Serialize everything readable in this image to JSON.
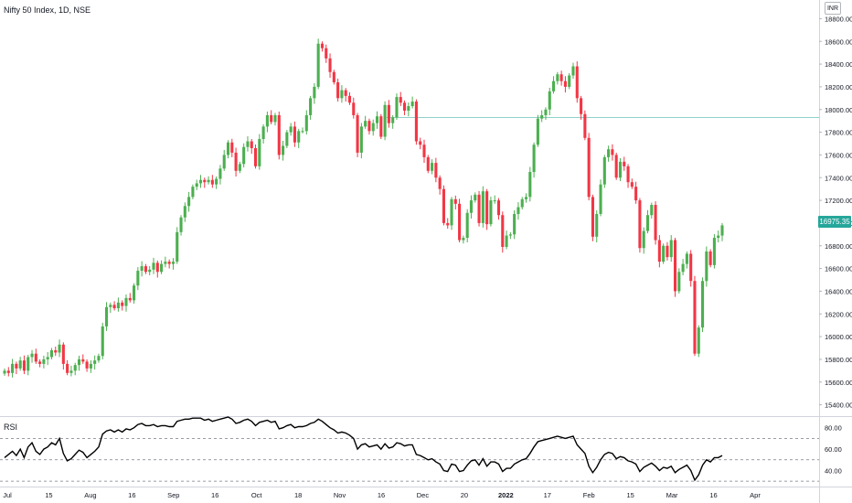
{
  "header": {
    "title": "Nifty 50 Index, 1D, NSE",
    "currency": "INR"
  },
  "rsi_panel": {
    "label": "RSI"
  },
  "last_price": {
    "value": "16975.35",
    "color": "#26a69a"
  },
  "colors": {
    "up": "#4caf50",
    "down": "#f23645",
    "rsi_line": "#000000",
    "resistance": "#26a69a"
  },
  "chart_data": [
    {
      "type": "candlestick",
      "title": "Nifty 50 Index, 1D, NSE",
      "y_axis_ticks": [
        "15400.00",
        "15600.00",
        "15800.00",
        "16000.00",
        "16200.00",
        "16400.00",
        "16600.00",
        "16800.00",
        "17000.00",
        "17200.00",
        "17400.00",
        "17600.00",
        "17800.00",
        "18000.00",
        "18200.00",
        "18400.00",
        "18600.00",
        "18800.00"
      ],
      "x_axis_ticks": [
        "Jul",
        "15",
        "Aug",
        "16",
        "Sep",
        "16",
        "Oct",
        "18",
        "Nov",
        "16",
        "Dec",
        "20",
        "2022",
        "17",
        "Feb",
        "15",
        "Mar",
        "16",
        "Apr"
      ],
      "ylim": [
        15300,
        18900
      ],
      "resistance_level": 17930,
      "last_value": 16975.35,
      "close_series": [
        15700,
        15680,
        15760,
        15720,
        15790,
        15700,
        15820,
        15850,
        15780,
        15760,
        15800,
        15820,
        15880,
        15860,
        15930,
        15760,
        15680,
        15700,
        15750,
        15800,
        15780,
        15720,
        15760,
        15790,
        15830,
        16090,
        16260,
        16280,
        16250,
        16300,
        16270,
        16340,
        16320,
        16450,
        16580,
        16620,
        16570,
        16590,
        16650,
        16570,
        16640,
        16660,
        16640,
        16660,
        16920,
        17050,
        17150,
        17230,
        17320,
        17350,
        17380,
        17360,
        17380,
        17340,
        17390,
        17480,
        17600,
        17710,
        17620,
        17460,
        17520,
        17670,
        17720,
        17660,
        17500,
        17740,
        17850,
        17950,
        17890,
        17950,
        17600,
        17680,
        17800,
        17850,
        17710,
        17810,
        17810,
        17950,
        18100,
        18200,
        18580,
        18540,
        18450,
        18330,
        18240,
        18100,
        18170,
        18120,
        18060,
        17950,
        17620,
        17850,
        17900,
        17810,
        17880,
        17940,
        17760,
        18040,
        17880,
        17930,
        18110,
        18060,
        17990,
        18030,
        18070,
        17720,
        17690,
        17580,
        17460,
        17530,
        17400,
        17300,
        17000,
        16980,
        17210,
        17170,
        16850,
        16870,
        17090,
        17200,
        17250,
        17000,
        17280,
        16990,
        17200,
        17200,
        17070,
        16790,
        16890,
        16900,
        17080,
        17140,
        17210,
        17230,
        17450,
        17690,
        17920,
        17950,
        18000,
        18160,
        18250,
        18310,
        18250,
        18200,
        18300,
        18380,
        18100,
        17960,
        17750,
        17230,
        16880,
        17080,
        17340,
        17580,
        17650,
        17600,
        17400,
        17540,
        17500,
        17360,
        17320,
        17200,
        16780,
        16930,
        17070,
        17160,
        16850,
        16660,
        16800,
        16700,
        16850,
        16400,
        16570,
        16640,
        16730,
        16490,
        15850,
        16080,
        16490,
        16750,
        16630,
        16870,
        16890,
        16980
      ],
      "rsi": {
        "name": "RSI",
        "y_axis_ticks": [
          "40.00",
          "60.00",
          "80.00"
        ],
        "ylim": [
          25,
          90
        ],
        "levels": [
          70,
          50,
          30
        ],
        "values": [
          52,
          55,
          58,
          54,
          60,
          52,
          62,
          66,
          58,
          55,
          60,
          62,
          66,
          64,
          70,
          56,
          49,
          51,
          55,
          59,
          57,
          52,
          55,
          58,
          62,
          74,
          77,
          78,
          76,
          78,
          76,
          79,
          78,
          80,
          83,
          84,
          82,
          82,
          83,
          81,
          82,
          82,
          81,
          81,
          86,
          87,
          88,
          88,
          89,
          89,
          89,
          87,
          88,
          86,
          87,
          88,
          89,
          90,
          88,
          84,
          85,
          87,
          88,
          86,
          82,
          85,
          86,
          87,
          85,
          86,
          79,
          80,
          82,
          83,
          80,
          81,
          81,
          82,
          84,
          85,
          88,
          86,
          83,
          80,
          78,
          75,
          76,
          75,
          73,
          70,
          60,
          64,
          65,
          62,
          63,
          64,
          60,
          65,
          61,
          62,
          66,
          65,
          63,
          64,
          64,
          55,
          54,
          52,
          50,
          51,
          48,
          46,
          40,
          39,
          46,
          45,
          39,
          40,
          45,
          49,
          50,
          45,
          51,
          44,
          48,
          48,
          46,
          39,
          42,
          42,
          46,
          48,
          50,
          51,
          56,
          62,
          67,
          68,
          69,
          70,
          71,
          72,
          71,
          70,
          71,
          72,
          64,
          60,
          56,
          44,
          38,
          43,
          50,
          55,
          57,
          56,
          51,
          53,
          52,
          49,
          48,
          46,
          39,
          43,
          45,
          47,
          44,
          40,
          43,
          42,
          44,
          38,
          41,
          43,
          45,
          40,
          31,
          36,
          45,
          50,
          48,
          52,
          52,
          54
        ]
      }
    }
  ]
}
